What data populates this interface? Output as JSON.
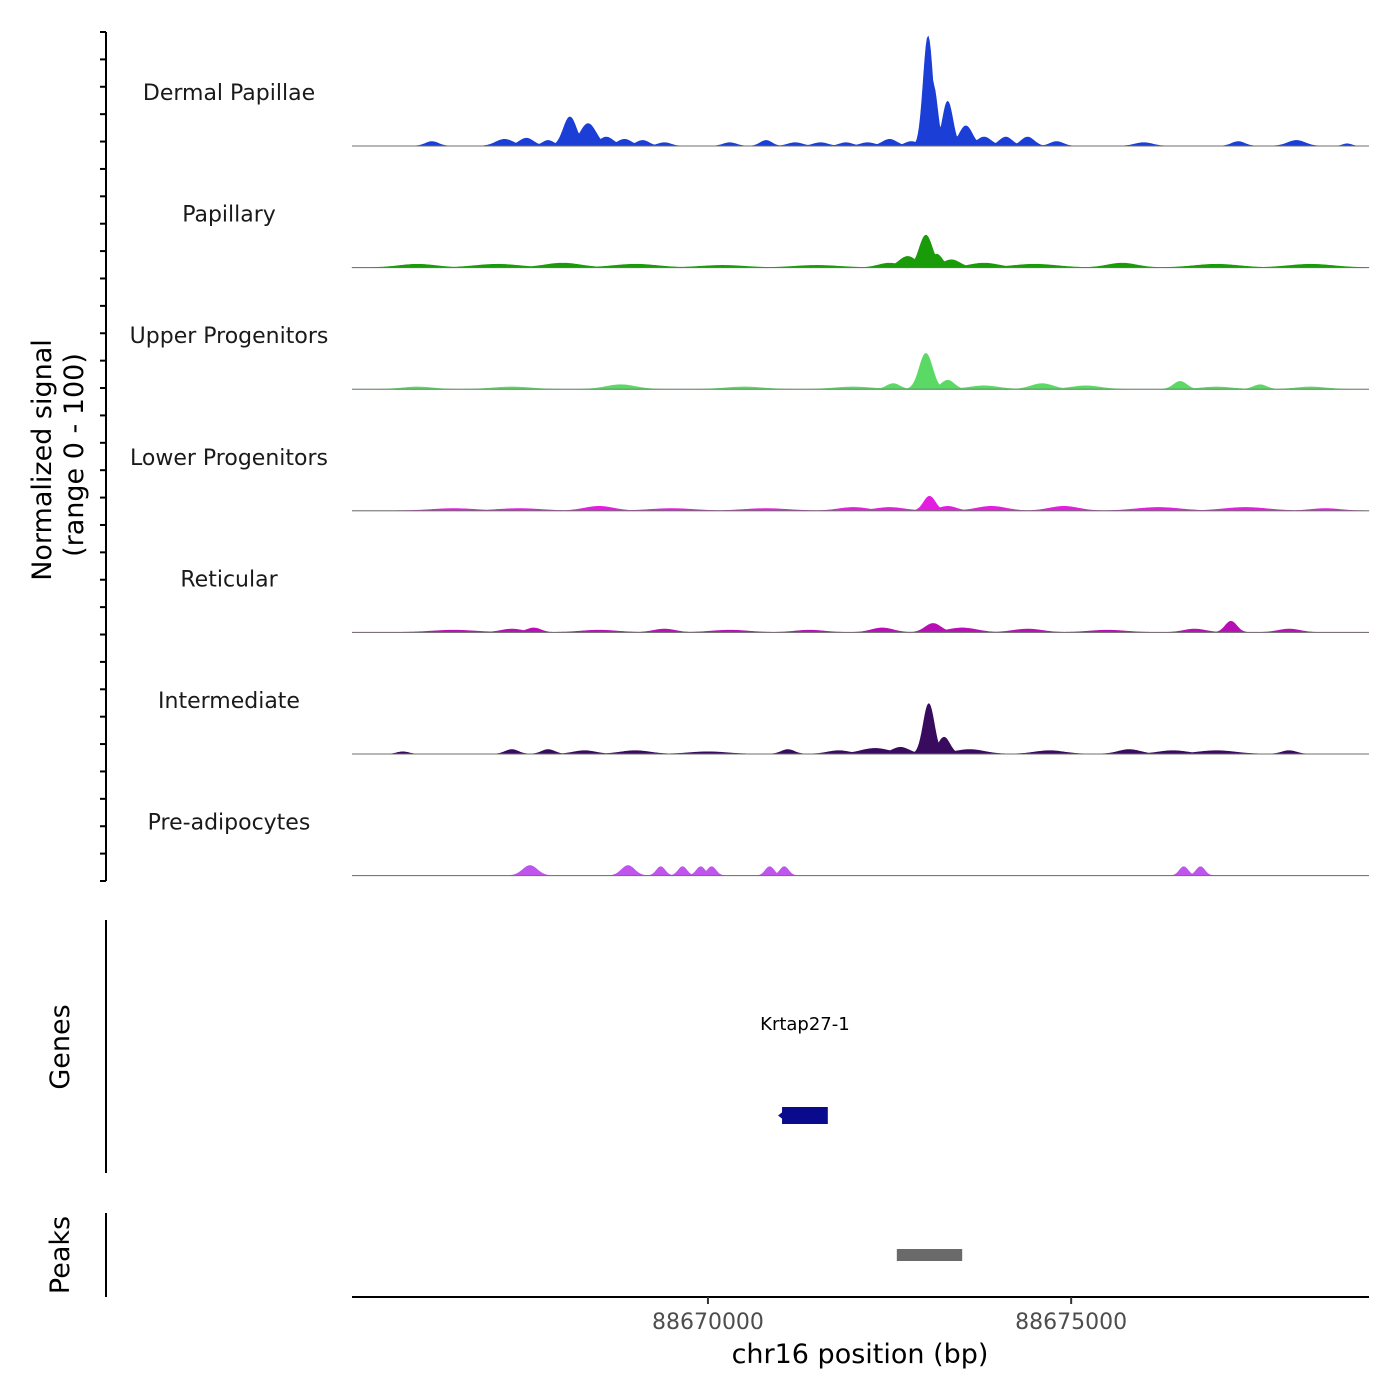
{
  "chart_data": [
    {
      "type": "area",
      "panel": "coverage",
      "ylabel_line1": "Normalized signal",
      "ylabel_line2": "(range 0 - 100)",
      "xlim": [
        88665100,
        88679100
      ],
      "ylim": [
        0,
        100
      ],
      "tracks": [
        {
          "name": "Dermal Papillae",
          "color": "#1a3ed6",
          "peaks": [
            {
              "x": 88666200,
              "value": 4,
              "width": 90
            },
            {
              "x": 88667200,
              "value": 6,
              "width": 120
            },
            {
              "x": 88667500,
              "value": 7,
              "width": 100
            },
            {
              "x": 88667800,
              "value": 5,
              "width": 80
            },
            {
              "x": 88668100,
              "value": 26,
              "width": 90
            },
            {
              "x": 88668350,
              "value": 20,
              "width": 110
            },
            {
              "x": 88668600,
              "value": 8,
              "width": 100
            },
            {
              "x": 88668850,
              "value": 6,
              "width": 100
            },
            {
              "x": 88669100,
              "value": 5,
              "width": 90
            },
            {
              "x": 88669400,
              "value": 3,
              "width": 90
            },
            {
              "x": 88670300,
              "value": 3,
              "width": 90
            },
            {
              "x": 88670800,
              "value": 5,
              "width": 80
            },
            {
              "x": 88671200,
              "value": 3,
              "width": 100
            },
            {
              "x": 88671550,
              "value": 3,
              "width": 100
            },
            {
              "x": 88671900,
              "value": 3,
              "width": 90
            },
            {
              "x": 88672200,
              "value": 3,
              "width": 100
            },
            {
              "x": 88672500,
              "value": 6,
              "width": 100
            },
            {
              "x": 88672800,
              "value": 4,
              "width": 90
            },
            {
              "x": 88673030,
              "value": 98,
              "width": 65
            },
            {
              "x": 88673100,
              "value": 55,
              "width": 60
            },
            {
              "x": 88673300,
              "value": 40,
              "width": 70
            },
            {
              "x": 88673550,
              "value": 18,
              "width": 90
            },
            {
              "x": 88673800,
              "value": 8,
              "width": 100
            },
            {
              "x": 88674100,
              "value": 8,
              "width": 90
            },
            {
              "x": 88674400,
              "value": 8,
              "width": 90
            },
            {
              "x": 88674800,
              "value": 4,
              "width": 90
            },
            {
              "x": 88676000,
              "value": 3,
              "width": 120
            },
            {
              "x": 88677300,
              "value": 4,
              "width": 90
            },
            {
              "x": 88678100,
              "value": 5,
              "width": 120
            },
            {
              "x": 88678800,
              "value": 2,
              "width": 60
            }
          ]
        },
        {
          "name": "Papillary",
          "color": "#199b0a",
          "peaks": [
            {
              "x": 88666000,
              "value": 3,
              "width": 250
            },
            {
              "x": 88667100,
              "value": 3,
              "width": 300
            },
            {
              "x": 88668000,
              "value": 4,
              "width": 250
            },
            {
              "x": 88669000,
              "value": 3,
              "width": 300
            },
            {
              "x": 88670200,
              "value": 2,
              "width": 300
            },
            {
              "x": 88671500,
              "value": 2,
              "width": 300
            },
            {
              "x": 88672500,
              "value": 4,
              "width": 150
            },
            {
              "x": 88672750,
              "value": 10,
              "width": 120
            },
            {
              "x": 88673000,
              "value": 29,
              "width": 90
            },
            {
              "x": 88673150,
              "value": 12,
              "width": 80
            },
            {
              "x": 88673350,
              "value": 7,
              "width": 120
            },
            {
              "x": 88673800,
              "value": 4,
              "width": 200
            },
            {
              "x": 88674500,
              "value": 3,
              "width": 300
            },
            {
              "x": 88675700,
              "value": 4,
              "width": 200
            },
            {
              "x": 88677000,
              "value": 3,
              "width": 300
            },
            {
              "x": 88678300,
              "value": 3,
              "width": 300
            }
          ]
        },
        {
          "name": "Upper Progenitors",
          "color": "#5bd965",
          "peaks": [
            {
              "x": 88666000,
              "value": 2,
              "width": 200
            },
            {
              "x": 88667300,
              "value": 2,
              "width": 250
            },
            {
              "x": 88668800,
              "value": 4,
              "width": 200
            },
            {
              "x": 88670500,
              "value": 2,
              "width": 250
            },
            {
              "x": 88672000,
              "value": 2,
              "width": 250
            },
            {
              "x": 88672550,
              "value": 5,
              "width": 90
            },
            {
              "x": 88673000,
              "value": 32,
              "width": 90
            },
            {
              "x": 88673300,
              "value": 8,
              "width": 90
            },
            {
              "x": 88673800,
              "value": 3,
              "width": 200
            },
            {
              "x": 88674600,
              "value": 5,
              "width": 150
            },
            {
              "x": 88675200,
              "value": 3,
              "width": 200
            },
            {
              "x": 88676500,
              "value": 7,
              "width": 90
            },
            {
              "x": 88677000,
              "value": 2,
              "width": 200
            },
            {
              "x": 88677600,
              "value": 4,
              "width": 90
            },
            {
              "x": 88678300,
              "value": 2,
              "width": 200
            }
          ]
        },
        {
          "name": "Lower Progenitors",
          "color": "#e31ee0",
          "peaks": [
            {
              "x": 88666500,
              "value": 2,
              "width": 300
            },
            {
              "x": 88667400,
              "value": 2,
              "width": 300
            },
            {
              "x": 88668500,
              "value": 4,
              "width": 200
            },
            {
              "x": 88669500,
              "value": 2,
              "width": 300
            },
            {
              "x": 88670800,
              "value": 2,
              "width": 300
            },
            {
              "x": 88672000,
              "value": 3,
              "width": 200
            },
            {
              "x": 88672500,
              "value": 3,
              "width": 200
            },
            {
              "x": 88673050,
              "value": 13,
              "width": 80
            },
            {
              "x": 88673300,
              "value": 4,
              "width": 120
            },
            {
              "x": 88673900,
              "value": 4,
              "width": 200
            },
            {
              "x": 88674900,
              "value": 4,
              "width": 200
            },
            {
              "x": 88676200,
              "value": 3,
              "width": 300
            },
            {
              "x": 88677400,
              "value": 3,
              "width": 300
            },
            {
              "x": 88678500,
              "value": 2,
              "width": 200
            }
          ]
        },
        {
          "name": "Reticular",
          "color": "#b80fb5",
          "peaks": [
            {
              "x": 88666500,
              "value": 2,
              "width": 300
            },
            {
              "x": 88667300,
              "value": 3,
              "width": 150
            },
            {
              "x": 88667600,
              "value": 4,
              "width": 100
            },
            {
              "x": 88668500,
              "value": 2,
              "width": 250
            },
            {
              "x": 88669400,
              "value": 3,
              "width": 150
            },
            {
              "x": 88670300,
              "value": 2,
              "width": 250
            },
            {
              "x": 88671400,
              "value": 2,
              "width": 200
            },
            {
              "x": 88672400,
              "value": 4,
              "width": 150
            },
            {
              "x": 88673100,
              "value": 8,
              "width": 110
            },
            {
              "x": 88673500,
              "value": 4,
              "width": 200
            },
            {
              "x": 88674400,
              "value": 3,
              "width": 200
            },
            {
              "x": 88675500,
              "value": 2,
              "width": 250
            },
            {
              "x": 88676700,
              "value": 3,
              "width": 150
            },
            {
              "x": 88677200,
              "value": 10,
              "width": 80
            },
            {
              "x": 88678000,
              "value": 3,
              "width": 150
            }
          ]
        },
        {
          "name": "Intermediate",
          "color": "#380b5e",
          "peaks": [
            {
              "x": 88665800,
              "value": 2,
              "width": 80
            },
            {
              "x": 88667300,
              "value": 4,
              "width": 90
            },
            {
              "x": 88667800,
              "value": 4,
              "width": 90
            },
            {
              "x": 88668300,
              "value": 3,
              "width": 150
            },
            {
              "x": 88669000,
              "value": 3,
              "width": 200
            },
            {
              "x": 88670000,
              "value": 2,
              "width": 250
            },
            {
              "x": 88671100,
              "value": 4,
              "width": 90
            },
            {
              "x": 88671800,
              "value": 3,
              "width": 150
            },
            {
              "x": 88672300,
              "value": 5,
              "width": 200
            },
            {
              "x": 88672650,
              "value": 6,
              "width": 120
            },
            {
              "x": 88673040,
              "value": 45,
              "width": 75
            },
            {
              "x": 88673250,
              "value": 15,
              "width": 80
            },
            {
              "x": 88673600,
              "value": 4,
              "width": 200
            },
            {
              "x": 88674700,
              "value": 3,
              "width": 200
            },
            {
              "x": 88675800,
              "value": 4,
              "width": 150
            },
            {
              "x": 88676400,
              "value": 3,
              "width": 200
            },
            {
              "x": 88677000,
              "value": 3,
              "width": 250
            },
            {
              "x": 88678000,
              "value": 3,
              "width": 100
            }
          ]
        },
        {
          "name": "Pre-adipocytes",
          "color": "#bf55ec",
          "peaks": [
            {
              "x": 88667550,
              "value": 9,
              "width": 100
            },
            {
              "x": 88668900,
              "value": 9,
              "width": 90
            },
            {
              "x": 88669350,
              "value": 8,
              "width": 60
            },
            {
              "x": 88669650,
              "value": 8,
              "width": 60
            },
            {
              "x": 88669900,
              "value": 8,
              "width": 60
            },
            {
              "x": 88670050,
              "value": 8,
              "width": 60
            },
            {
              "x": 88670850,
              "value": 8,
              "width": 60
            },
            {
              "x": 88671050,
              "value": 8,
              "width": 60
            },
            {
              "x": 88676550,
              "value": 8,
              "width": 60
            },
            {
              "x": 88676780,
              "value": 8,
              "width": 60
            }
          ]
        }
      ]
    },
    {
      "type": "gene-annotation",
      "panel": "genes",
      "ylabel": "Genes",
      "genes": [
        {
          "name": "Krtap27-1",
          "start": 88671020,
          "end": 88671650,
          "strand": "-",
          "color": "#0a0a8c"
        }
      ]
    },
    {
      "type": "ranges",
      "panel": "peaks",
      "ylabel": "Peaks",
      "xlabel": "chr16 position (bp)",
      "x_ticks": [
        88670000,
        88675000
      ],
      "x_tick_labels": [
        "88670000",
        "88675000"
      ],
      "ranges": [
        {
          "start": 88672600,
          "end": 88673500,
          "color": "#6a6a6a"
        }
      ]
    }
  ]
}
